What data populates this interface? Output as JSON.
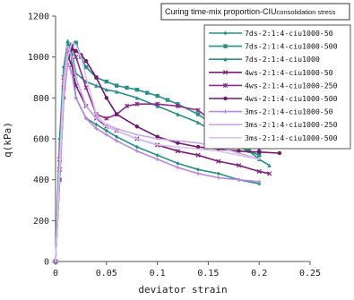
{
  "chart_data": {
    "type": "line",
    "title": "Curing time-mix proportion-CIU",
    "title_suffix": "consolidation stress",
    "xlabel": "deviator strain",
    "ylabel": "q(kPa)",
    "xlim": [
      0,
      0.25
    ],
    "ylim": [
      0,
      1200
    ],
    "xticks": [
      "0",
      "0.05",
      "0.1",
      "0.15",
      "0.2",
      "0.25"
    ],
    "yticks": [
      "0",
      "200",
      "400",
      "600",
      "800",
      "1000",
      "1200"
    ],
    "grid": false,
    "legend_position": "top-right",
    "series": [
      {
        "name": "7ds-2:1:4-ciu1000-50",
        "color": "#2a8f86",
        "marker": "diamond",
        "x": [
          0,
          0.004,
          0.008,
          0.012,
          0.016,
          0.02,
          0.03,
          0.04,
          0.05,
          0.06,
          0.08,
          0.1,
          0.12,
          0.14,
          0.16,
          0.18,
          0.2
        ],
        "y": [
          0,
          600,
          950,
          1070,
          980,
          800,
          700,
          670,
          640,
          610,
          560,
          520,
          480,
          450,
          430,
          400,
          380
        ]
      },
      {
        "name": "7ds-2:1:4-ciu1000-500",
        "color": "#2a8f86",
        "marker": "square",
        "x": [
          0,
          0.004,
          0.008,
          0.012,
          0.016,
          0.02,
          0.025,
          0.03,
          0.04,
          0.05,
          0.06,
          0.07,
          0.08,
          0.09,
          0.1,
          0.11,
          0.12,
          0.14,
          0.16,
          0.18,
          0.19,
          0.2
        ],
        "y": [
          0,
          400,
          850,
          1000,
          1060,
          1070,
          1000,
          950,
          900,
          880,
          860,
          850,
          840,
          825,
          810,
          790,
          770,
          720,
          650,
          560,
          540,
          520
        ]
      },
      {
        "name": "7ds-2:1:4-ciu1000",
        "color": "#2a8f86",
        "marker": "triangle",
        "x": [
          0,
          0.004,
          0.008,
          0.012,
          0.016,
          0.02,
          0.03,
          0.04,
          0.05,
          0.06,
          0.08,
          0.1,
          0.12,
          0.14,
          0.16,
          0.18,
          0.2,
          0.21
        ],
        "y": [
          0,
          500,
          900,
          1080,
          1020,
          920,
          880,
          860,
          840,
          830,
          800,
          760,
          720,
          680,
          620,
          580,
          500,
          470
        ]
      },
      {
        "name": "4ws-2:1:4-ciu1000-50",
        "color": "#7a1f7a",
        "marker": "x",
        "x": [
          0,
          0.004,
          0.008,
          0.012,
          0.016,
          0.02,
          0.03,
          0.04,
          0.05,
          0.06,
          0.08,
          0.1,
          0.12,
          0.14,
          0.16,
          0.18,
          0.2,
          0.21
        ],
        "y": [
          0,
          450,
          850,
          1000,
          960,
          860,
          760,
          700,
          660,
          640,
          600,
          570,
          540,
          520,
          490,
          470,
          440,
          430
        ]
      },
      {
        "name": "4ws-2:1:4-ciu1000-250",
        "color": "#8a2a8a",
        "marker": "star",
        "x": [
          0,
          0.004,
          0.008,
          0.012,
          0.016,
          0.02,
          0.03,
          0.04,
          0.05,
          0.06,
          0.07,
          0.08,
          0.1,
          0.12,
          0.14,
          0.16,
          0.18,
          0.2
        ],
        "y": [
          0,
          500,
          900,
          1030,
          1050,
          1000,
          850,
          720,
          700,
          720,
          760,
          770,
          770,
          760,
          740,
          660,
          580,
          550
        ]
      },
      {
        "name": "4ws-2:1:4-ciu1000-500",
        "color": "#6a1a6a",
        "marker": "circle",
        "x": [
          0,
          0.004,
          0.008,
          0.012,
          0.016,
          0.02,
          0.025,
          0.03,
          0.04,
          0.05,
          0.06,
          0.08,
          0.1,
          0.12,
          0.14,
          0.16,
          0.18,
          0.2,
          0.22
        ],
        "y": [
          0,
          400,
          800,
          1000,
          1040,
          1030,
          1010,
          980,
          900,
          800,
          720,
          660,
          610,
          580,
          560,
          550,
          540,
          535,
          530
        ]
      },
      {
        "name": "3ms-2:1:4-ciu1000-50",
        "color": "#b78ad8",
        "marker": "plus",
        "x": [
          0,
          0.004,
          0.008,
          0.012,
          0.016,
          0.02,
          0.03,
          0.04,
          0.05,
          0.06,
          0.08,
          0.1,
          0.12,
          0.14,
          0.16,
          0.18,
          0.2
        ],
        "y": [
          0,
          400,
          800,
          970,
          920,
          800,
          700,
          650,
          620,
          590,
          540,
          500,
          460,
          430,
          410,
          400,
          390
        ]
      },
      {
        "name": "3ms-2:1:4-ciu1000-250",
        "color": "#c9a8e6",
        "marker": "dash",
        "x": [
          0,
          0.004,
          0.008,
          0.012,
          0.016,
          0.02,
          0.03,
          0.04,
          0.05,
          0.06,
          0.08,
          0.1,
          0.12,
          0.14,
          0.16,
          0.18,
          0.2
        ],
        "y": [
          0,
          500,
          900,
          1050,
          1000,
          900,
          760,
          700,
          670,
          650,
          620,
          600,
          590,
          580,
          560,
          530,
          500
        ]
      },
      {
        "name": "3ms-2:1:4-ciu1000-500",
        "color": "#d9c2f0",
        "marker": "none",
        "x": [
          0,
          0.004,
          0.008,
          0.012,
          0.016,
          0.02,
          0.025,
          0.03,
          0.04,
          0.05,
          0.06,
          0.08,
          0.1,
          0.12,
          0.14,
          0.16,
          0.18,
          0.2
        ],
        "y": [
          0,
          450,
          850,
          1000,
          1070,
          1060,
          1000,
          900,
          720,
          660,
          640,
          600,
          570,
          560,
          550,
          540,
          520,
          500
        ]
      }
    ]
  }
}
